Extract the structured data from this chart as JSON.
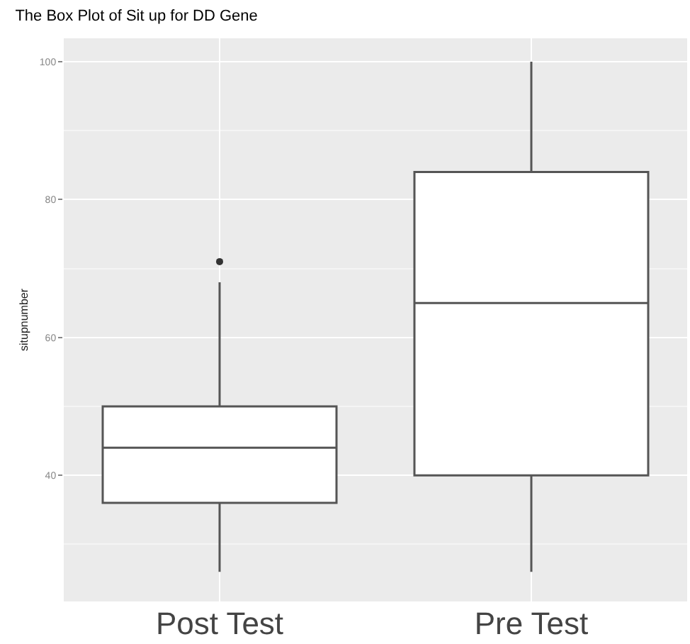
{
  "chart_data": {
    "type": "box",
    "title": "The Box Plot of Sit up for DD Gene",
    "ylabel": "situpnumber",
    "categories": [
      "Post Test",
      "Pre Test"
    ],
    "boxes": [
      {
        "low": 26,
        "q1": 36,
        "median": 44,
        "q3": 50,
        "high": 68,
        "outliers": [
          71
        ]
      },
      {
        "low": 26,
        "q1": 40,
        "median": 65,
        "q3": 84,
        "high": 100
      }
    ],
    "color": "#ffffff",
    "ylim": [
      21.7,
      103.4
    ],
    "yticks": [
      40,
      60,
      80,
      100
    ],
    "grid": true
  }
}
